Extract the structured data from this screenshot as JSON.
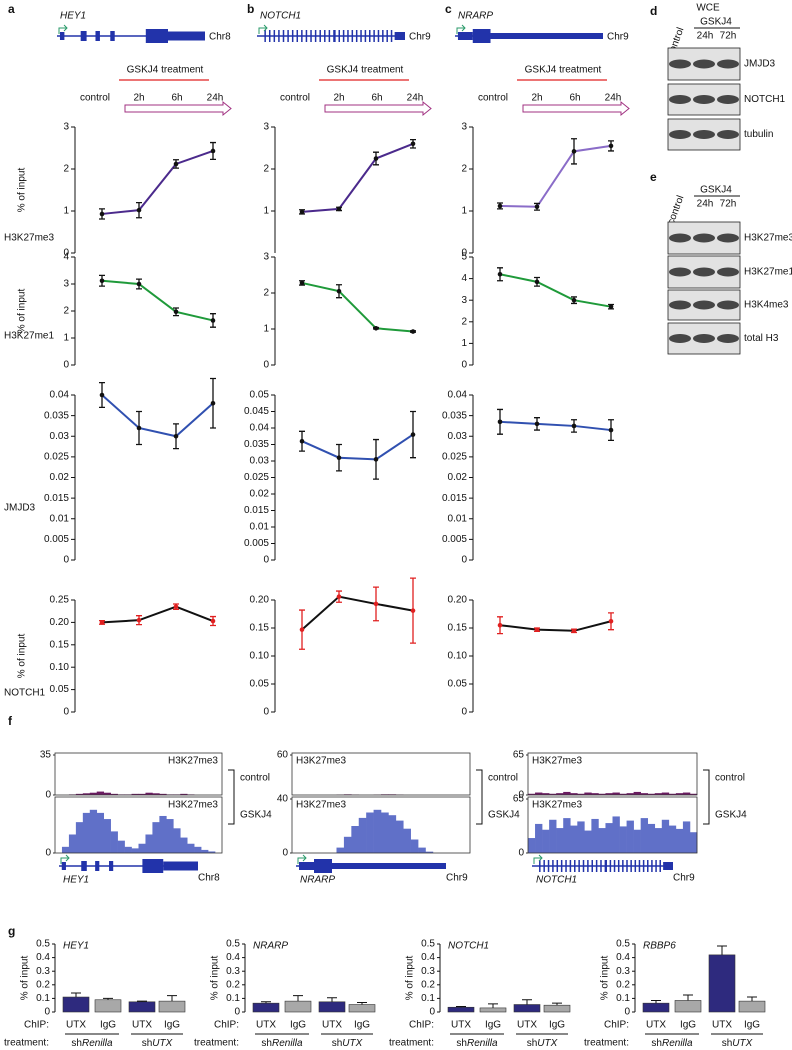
{
  "panel_labels": [
    "a",
    "b",
    "c",
    "d",
    "e",
    "f",
    "g"
  ],
  "row_labels": [
    "H3K27me3",
    "H3K27me1",
    "JMJD3",
    "NOTCH1"
  ],
  "columns": [
    {
      "gene": "HEY1",
      "chromosome": "Chr8",
      "treatment": {
        "title": "GSKJ4 treatment",
        "control": "control",
        "times": [
          "2h",
          "6h",
          "24h"
        ]
      }
    },
    {
      "gene": "NOTCH1",
      "chromosome": "Chr9",
      "treatment": {
        "title": "GSKJ4 treatment",
        "control": "control",
        "times": [
          "2h",
          "6h",
          "24h"
        ]
      }
    },
    {
      "gene": "NRARP",
      "chromosome": "Chr9",
      "treatment": {
        "title": "GSKJ4 treatment",
        "control": "control",
        "times": [
          "2h",
          "6h",
          "24h"
        ]
      }
    }
  ],
  "chart_data": [
    {
      "type": "line",
      "ylabel": "% of input",
      "categories": [
        null,
        null,
        null,
        null
      ],
      "ylim": [
        0,
        3
      ],
      "yticks": [
        0,
        1,
        2,
        3
      ],
      "series": [
        {
          "color": "#4b2a8c",
          "error_color": "#111111",
          "values": [
            0.93,
            1.02,
            2.12,
            2.43
          ],
          "errors": [
            0.12,
            0.18,
            0.1,
            0.2
          ]
        }
      ]
    },
    {
      "type": "line",
      "categories": [
        null,
        null,
        null,
        null
      ],
      "ylim": [
        0,
        3
      ],
      "yticks": [
        1,
        2,
        3
      ],
      "series": [
        {
          "color": "#4b2a8c",
          "error_color": "#111111",
          "values": [
            0.98,
            1.05,
            2.25,
            2.6
          ],
          "errors": [
            0.05,
            0.04,
            0.15,
            0.1
          ]
        }
      ]
    },
    {
      "type": "line",
      "categories": [
        null,
        null,
        null,
        null
      ],
      "ylim": [
        0,
        3
      ],
      "yticks": [
        0,
        1,
        2,
        3
      ],
      "series": [
        {
          "color": "#8a6cc8",
          "error_color": "#111111",
          "values": [
            1.12,
            1.1,
            2.42,
            2.55
          ],
          "errors": [
            0.07,
            0.08,
            0.3,
            0.12
          ]
        }
      ]
    },
    {
      "type": "line",
      "ylabel": "% of input",
      "categories": [
        null,
        null,
        null,
        null
      ],
      "ylim": [
        0,
        4
      ],
      "yticks": [
        0,
        1,
        2,
        3,
        4
      ],
      "series": [
        {
          "color": "#1f9a3a",
          "error_color": "#111111",
          "values": [
            3.12,
            3.0,
            1.97,
            1.65
          ],
          "errors": [
            0.2,
            0.18,
            0.14,
            0.25
          ]
        }
      ]
    },
    {
      "type": "line",
      "categories": [
        null,
        null,
        null,
        null
      ],
      "ylim": [
        0,
        3
      ],
      "yticks": [
        0,
        1,
        2,
        3
      ],
      "series": [
        {
          "color": "#1f9a3a",
          "error_color": "#111111",
          "values": [
            2.28,
            2.05,
            1.02,
            0.93
          ],
          "errors": [
            0.06,
            0.18,
            0.02,
            0.02
          ]
        }
      ]
    },
    {
      "type": "line",
      "categories": [
        null,
        null,
        null,
        null
      ],
      "ylim": [
        0,
        5
      ],
      "yticks": [
        0,
        1,
        2,
        3,
        4,
        5
      ],
      "series": [
        {
          "color": "#1f9a3a",
          "error_color": "#111111",
          "values": [
            4.2,
            3.85,
            3.0,
            2.7
          ],
          "errors": [
            0.3,
            0.2,
            0.15,
            0.1
          ]
        }
      ]
    },
    {
      "type": "line",
      "categories": [
        null,
        null,
        null,
        null
      ],
      "ylim": [
        0,
        0.04
      ],
      "yticks": [
        0,
        0.005,
        0.01,
        0.015,
        0.02,
        0.025,
        0.03,
        0.035,
        0.04
      ],
      "series": [
        {
          "color": "#3050b0",
          "error_color": "#111111",
          "values": [
            0.04,
            0.032,
            0.03,
            0.038
          ],
          "errors": [
            0.003,
            0.004,
            0.003,
            0.006
          ]
        }
      ]
    },
    {
      "type": "line",
      "categories": [
        null,
        null,
        null,
        null
      ],
      "ylim": [
        0,
        0.05
      ],
      "yticks": [
        0,
        0.005,
        0.01,
        0.015,
        0.02,
        0.025,
        0.03,
        0.035,
        0.04,
        0.045,
        0.05
      ],
      "series": [
        {
          "color": "#3050b0",
          "error_color": "#111111",
          "values": [
            0.036,
            0.031,
            0.0305,
            0.038
          ],
          "errors": [
            0.003,
            0.004,
            0.006,
            0.007
          ]
        }
      ]
    },
    {
      "type": "line",
      "categories": [
        null,
        null,
        null,
        null
      ],
      "ylim": [
        0,
        0.04
      ],
      "yticks": [
        0,
        0.005,
        0.01,
        0.015,
        0.02,
        0.025,
        0.03,
        0.035,
        0.04
      ],
      "series": [
        {
          "color": "#3050b0",
          "error_color": "#111111",
          "values": [
            0.0335,
            0.033,
            0.0325,
            0.0315
          ],
          "errors": [
            0.003,
            0.0015,
            0.0015,
            0.0025
          ]
        }
      ]
    },
    {
      "type": "line",
      "ylabel": "% of input",
      "categories": [
        null,
        null,
        null,
        null
      ],
      "ylim": [
        0,
        0.25
      ],
      "yticks": [
        0,
        0.05,
        {
          "value": 0.1,
          "label": "0.10"
        },
        0.15,
        {
          "value": 0.2,
          "label": "0.20"
        },
        0.25
      ],
      "series": [
        {
          "color": "#111111",
          "error_color": "#e02020",
          "values": [
            0.2,
            0.205,
            0.235,
            0.203
          ],
          "errors": [
            0.004,
            0.01,
            0.006,
            0.01
          ]
        }
      ]
    },
    {
      "type": "line",
      "categories": [
        null,
        null,
        null,
        null
      ],
      "ylim": [
        0,
        0.2
      ],
      "yticks": [
        0,
        0.05,
        {
          "value": 0.1,
          "label": "0.10"
        },
        0.15,
        {
          "value": 0.2,
          "label": "0.20"
        }
      ],
      "series": [
        {
          "color": "#111111",
          "error_color": "#e02020",
          "values": [
            0.147,
            0.206,
            0.193,
            0.181
          ],
          "errors": [
            0.035,
            0.01,
            0.03,
            0.058
          ]
        }
      ]
    },
    {
      "type": "line",
      "categories": [
        null,
        null,
        null,
        null
      ],
      "ylim": [
        0,
        0.2
      ],
      "yticks": [
        0,
        0.05,
        {
          "value": 0.1,
          "label": "0.10"
        },
        0.15,
        {
          "value": 0.2,
          "label": "0.20"
        }
      ],
      "series": [
        {
          "color": "#111111",
          "error_color": "#e02020",
          "values": [
            0.155,
            0.147,
            0.145,
            0.162
          ],
          "errors": [
            0.015,
            0.003,
            0.003,
            0.015
          ]
        }
      ]
    },
    {
      "type": "bar",
      "title": "HEY1",
      "ylabel": "% of input",
      "ylim": [
        0,
        0.5
      ],
      "yticks": [
        0,
        0.1,
        0.2,
        0.3,
        0.4,
        0.5
      ],
      "categories": [
        "UTX",
        "IgG",
        "UTX",
        "IgG"
      ],
      "colors": [
        "#2e2a7e",
        "#a8a8a8",
        "#2e2a7e",
        "#a8a8a8"
      ],
      "values": [
        0.11,
        0.09,
        0.075,
        0.08
      ],
      "errors": [
        0.03,
        0.01,
        0.005,
        0.04
      ],
      "axis_labels": {
        "chip": "ChIP:",
        "treatment": "treatment:"
      },
      "groups": [
        {
          "prefix": "sh",
          "name": "Renilla"
        },
        {
          "prefix": "sh",
          "name": "UTX"
        }
      ]
    },
    {
      "type": "bar",
      "title": "NRARP",
      "ylabel": "% of input",
      "ylim": [
        0,
        0.5
      ],
      "yticks": [
        0,
        0.1,
        0.2,
        0.3,
        0.4,
        0.5
      ],
      "categories": [
        "UTX",
        "IgG",
        "UTX",
        "IgG"
      ],
      "colors": [
        "#2e2a7e",
        "#a8a8a8",
        "#2e2a7e",
        "#a8a8a8"
      ],
      "values": [
        0.065,
        0.08,
        0.075,
        0.055
      ],
      "errors": [
        0.01,
        0.04,
        0.03,
        0.015
      ],
      "axis_labels": {
        "chip": "ChIP:",
        "treatment": "treatment:"
      },
      "groups": [
        {
          "prefix": "sh",
          "name": "Renilla"
        },
        {
          "prefix": "sh",
          "name": "UTX"
        }
      ]
    },
    {
      "type": "bar",
      "title": "NOTCH1",
      "ylabel": "% of input",
      "ylim": [
        0,
        0.5
      ],
      "yticks": [
        0,
        0.1,
        0.2,
        0.3,
        0.4,
        0.5
      ],
      "categories": [
        "UTX",
        "IgG",
        "UTX",
        "IgG"
      ],
      "colors": [
        "#2e2a7e",
        "#a8a8a8",
        "#2e2a7e",
        "#a8a8a8"
      ],
      "values": [
        0.035,
        0.03,
        0.055,
        0.05
      ],
      "errors": [
        0.005,
        0.03,
        0.035,
        0.015
      ],
      "axis_labels": {
        "chip": "ChIP:",
        "treatment": "treatment:"
      },
      "groups": [
        {
          "prefix": "sh",
          "name": "Renilla"
        },
        {
          "prefix": "sh",
          "name": "UTX"
        }
      ]
    },
    {
      "type": "bar",
      "title": "RBBP6",
      "ylabel": "% of input",
      "ylim": [
        0,
        0.5
      ],
      "yticks": [
        0,
        0.1,
        0.2,
        0.3,
        0.4,
        0.5
      ],
      "categories": [
        "UTX",
        "IgG",
        "UTX",
        "IgG"
      ],
      "colors": [
        "#2e2a7e",
        "#a8a8a8",
        "#2e2a7e",
        "#a8a8a8"
      ],
      "values": [
        0.065,
        0.085,
        0.42,
        0.08
      ],
      "errors": [
        0.02,
        0.04,
        0.065,
        0.03
      ],
      "axis_labels": {
        "chip": "ChIP:",
        "treatment": "treatment:"
      },
      "groups": [
        {
          "prefix": "sh",
          "name": "Renilla"
        },
        {
          "prefix": "sh",
          "name": "UTX"
        }
      ]
    }
  ],
  "blots": [
    {
      "header": "WCE",
      "control": "control",
      "treatment": "GSKJ4",
      "times": [
        "24h",
        "72h"
      ],
      "bands": [
        "JMJD3",
        "NOTCH1",
        "tubulin"
      ]
    },
    {
      "control": "control",
      "treatment": "GSKJ4",
      "times": [
        "24h",
        "72h"
      ],
      "bands": [
        "H3K27me3",
        "H3K27me1",
        "H3K4me3",
        "total H3"
      ]
    }
  ],
  "tracks": [
    {
      "gene": "HEY1",
      "chromosome": "Chr8",
      "tracks": [
        {
          "label": "H3K27me3",
          "condition": "control",
          "color": "#6a1a60",
          "ylim": [
            0,
            35
          ],
          "yticks": [
            0,
            35
          ],
          "values": [
            0,
            0,
            0.5,
            1,
            1.5,
            2,
            3,
            2,
            1,
            0.5,
            0.5,
            1,
            1,
            2,
            1.5,
            1,
            0.5,
            0.5,
            1,
            0.5,
            0,
            0,
            0,
            0
          ]
        },
        {
          "label": "H3K27me3",
          "condition": "GSKJ4",
          "color": "#6070c8",
          "ylim": [
            0,
            35
          ],
          "yticks": [
            0
          ],
          "values": [
            0,
            4,
            12,
            20,
            26,
            28,
            26,
            22,
            14,
            8,
            4,
            3,
            6,
            12,
            20,
            24,
            22,
            16,
            10,
            6,
            4,
            2,
            1,
            0
          ]
        }
      ]
    },
    {
      "gene": "NRARP",
      "chromosome": "Chr9",
      "tracks": [
        {
          "label": "H3K27me3",
          "condition": "control",
          "color": "#6a1a60",
          "ylim": [
            0,
            60
          ],
          "yticks": [
            60
          ],
          "values": [
            0,
            0,
            0,
            0,
            0,
            0,
            0.5,
            1,
            0.5,
            0,
            0,
            0.5,
            1,
            1,
            0.5,
            0,
            0,
            0,
            0,
            0,
            0,
            0,
            0,
            0
          ]
        },
        {
          "label": "H3K27me3",
          "condition": "GSKJ4",
          "color": "#6070c8",
          "ylim": [
            0,
            40
          ],
          "yticks": [
            0,
            40
          ],
          "values": [
            0,
            0,
            0,
            0,
            0,
            0,
            4,
            12,
            20,
            26,
            30,
            32,
            30,
            28,
            24,
            18,
            10,
            4,
            1,
            0,
            0,
            0,
            0,
            0
          ]
        }
      ]
    },
    {
      "gene": "NOTCH1",
      "chromosome": "Chr9",
      "tracks": [
        {
          "label": "H3K27me3",
          "condition": "control",
          "color": "#6a1a60",
          "ylim": [
            0,
            65
          ],
          "yticks": [
            0,
            65
          ],
          "values": [
            2,
            4,
            3,
            2,
            3,
            5,
            3,
            2,
            4,
            3,
            2,
            3,
            4,
            2,
            3,
            5,
            3,
            2,
            3,
            4,
            2,
            3,
            4,
            2
          ]
        },
        {
          "label": "H3K27me3",
          "condition": "GSKJ4",
          "color": "#6070c8",
          "ylim": [
            0,
            65
          ],
          "yticks": [
            0,
            65
          ],
          "values": [
            18,
            35,
            28,
            40,
            30,
            42,
            33,
            38,
            27,
            41,
            30,
            36,
            44,
            32,
            39,
            28,
            42,
            35,
            30,
            40,
            33,
            29,
            38,
            25
          ]
        }
      ]
    }
  ]
}
